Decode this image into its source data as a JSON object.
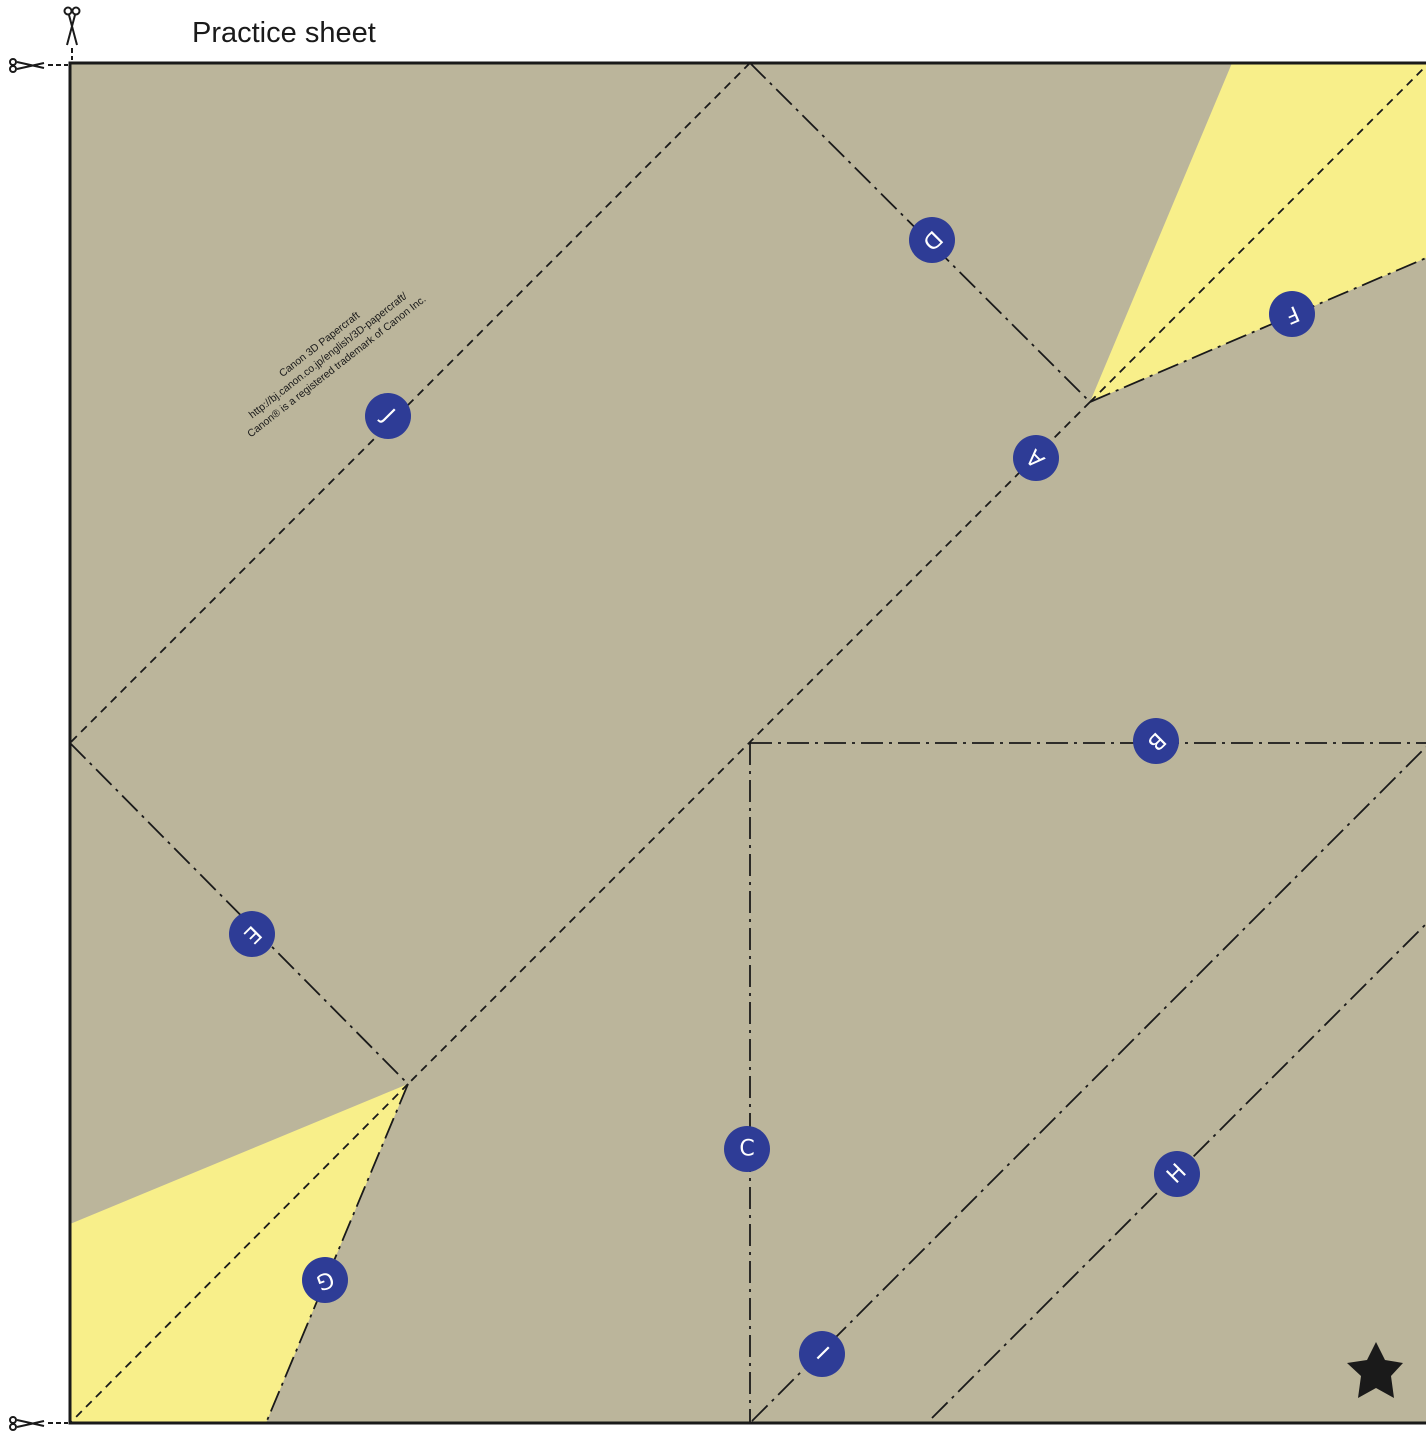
{
  "title": "Practice sheet",
  "credits": [
    "Canon 3D Papercraft",
    "http://bj.canon.co.jp/english/3D-papercraft/",
    "Canon® is a registered trademark of Canon Inc."
  ],
  "markers": {
    "A": "A",
    "B": "B",
    "C": "C",
    "D": "D",
    "E": "E",
    "F": "F",
    "G": "G",
    "H": "H",
    "I": "I",
    "J": "J"
  },
  "colors": {
    "paper": "#bbb59b",
    "flap": "#f8ef8a",
    "marker": "#2e3c96",
    "line": "#1a1a1a"
  },
  "icons": {
    "cut_marks": "scissors-icon",
    "corner": "star-icon"
  }
}
